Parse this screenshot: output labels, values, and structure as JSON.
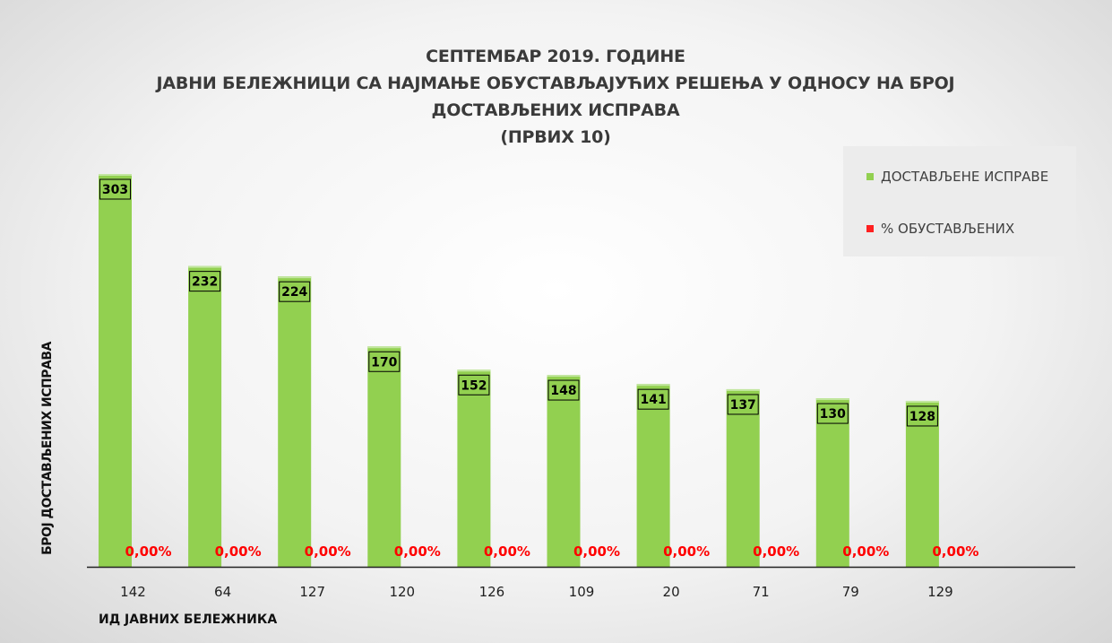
{
  "chart_data": {
    "type": "bar",
    "title_lines": [
      "СЕПТЕМБАР 2019. ГОДИНЕ",
      "ЈАВНИ БЕЛЕЖНИЦИ СА НАЈМАЊЕ ОБУСТАВЉАЈУЋИХ РЕШЕЊА У ОДНОСУ НА БРОЈ",
      "ДОСТАВЉЕНИХ ИСПРАВА",
      "(ПРВИХ 10)"
    ],
    "xlabel": "ИД ЈАВНИХ БЕЛЕЖНИКА",
    "ylabel": "БРОЈ ДОСТАВЉЕНИХ ИСПРАВА",
    "categories": [
      "142",
      "64",
      "127",
      "120",
      "126",
      "109",
      "20",
      "71",
      "79",
      "129"
    ],
    "series": [
      {
        "name": "ДОСТАВЉЕНЕ ИСПРАВЕ",
        "color": "#92d050",
        "values": [
          303,
          232,
          224,
          170,
          152,
          148,
          141,
          137,
          130,
          128
        ],
        "labels": [
          "303",
          "232",
          "224",
          "170",
          "152",
          "148",
          "141",
          "137",
          "130",
          "128"
        ]
      },
      {
        "name": "% ОБУСТАВЉЕНИХ",
        "color": "#ff0000",
        "values": [
          0,
          0,
          0,
          0,
          0,
          0,
          0,
          0,
          0,
          0
        ],
        "labels": [
          "0,00%",
          "0,00%",
          "0,00%",
          "0,00%",
          "0,00%",
          "0,00%",
          "0,00%",
          "0,00%",
          "0,00%",
          "0,00%"
        ]
      }
    ],
    "ylim": [
      0,
      303
    ],
    "grid": false,
    "legend_position": "top-right"
  }
}
